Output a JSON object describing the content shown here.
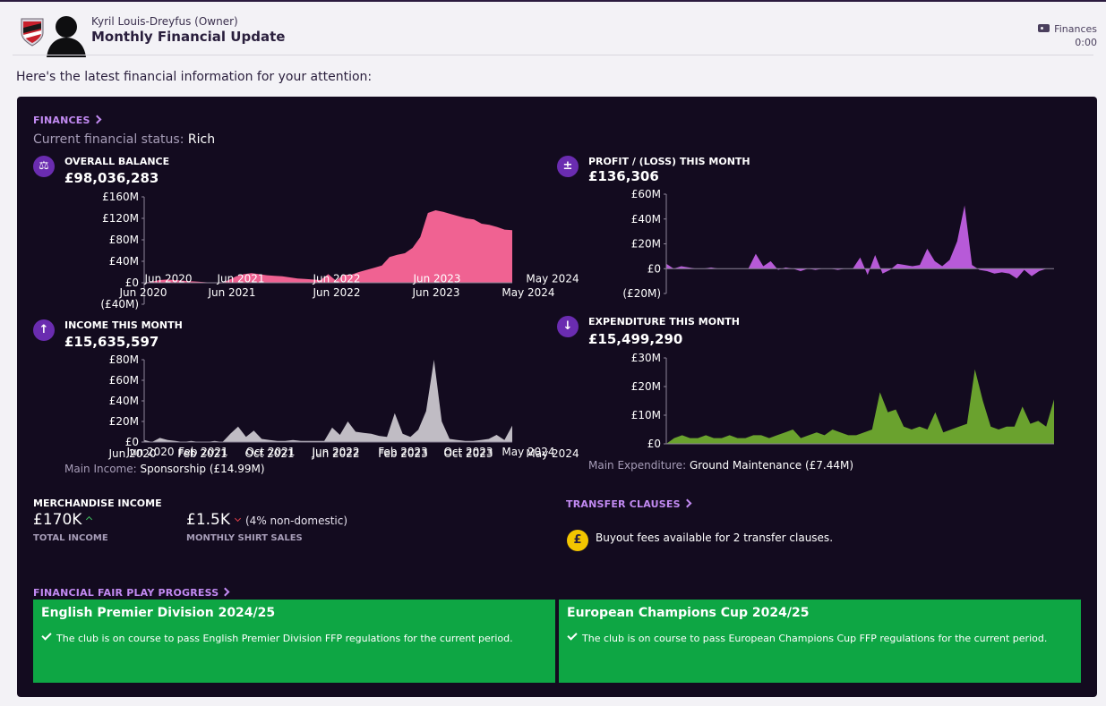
{
  "header": {
    "sender": "Kyril Louis-Dreyfus  (Owner)",
    "subject": "Monthly Financial Update",
    "tag_label": "Finances",
    "tag_time": "0:00"
  },
  "intro": "Here's the latest financial information for your attention:",
  "finances": {
    "link_label": "FINANCES",
    "status_label": "Current financial status:",
    "status_value": "Rich"
  },
  "charts": {
    "overall_balance": {
      "title": "OVERALL BALANCE",
      "value": "£98,036,283",
      "icon": "scale-icon",
      "color": "#f06292",
      "y_ticks": [
        "£160M",
        "£120M",
        "£80M",
        "£40M",
        "£0",
        "(£40M)"
      ],
      "x_ticks": [
        "Jun 2020",
        "Jun 2021",
        "Jun 2022",
        "Jun 2023",
        "May 2024"
      ]
    },
    "profit_loss": {
      "title": "PROFIT / (LOSS) THIS MONTH",
      "value": "£136,306",
      "icon": "plus-minus-icon",
      "color": "#b75ad8",
      "y_ticks": [
        "£60M",
        "£40M",
        "£20M",
        "£0",
        "(£20M)"
      ],
      "x_ticks": [
        "Jun 2020",
        "Jun 2021",
        "Jun 2022",
        "Jun 2023",
        "May 2024"
      ]
    },
    "income": {
      "title": "INCOME THIS MONTH",
      "value": "£15,635,597",
      "icon": "arrow-up-icon",
      "color": "#c0bcc4",
      "y_ticks": [
        "£80M",
        "£60M",
        "£40M",
        "£20M",
        "£0"
      ],
      "x_ticks": [
        "Jun 2020",
        "Feb 2021",
        "Oct 2021",
        "Jun 2022",
        "Feb 2023",
        "Oct 2023",
        "May 2024"
      ],
      "main_label": "Main Income:",
      "main_value": "Sponsorship (£14.99M)"
    },
    "expenditure": {
      "title": "EXPENDITURE THIS MONTH",
      "value": "£15,499,290",
      "icon": "arrow-down-icon",
      "color": "#6aa22e",
      "y_ticks": [
        "£30M",
        "£20M",
        "£10M",
        "£0"
      ],
      "x_ticks": [
        "Jun 2020",
        "Feb 2021",
        "Oct 2021",
        "Jun 2022",
        "Feb 2023",
        "Oct 2023",
        "May 2024"
      ],
      "main_label": "Main Expenditure:",
      "main_value": "Ground Maintenance (£7.44M)"
    }
  },
  "chart_data": [
    {
      "type": "area",
      "title": "OVERALL BALANCE",
      "ylim": [
        -40,
        160
      ],
      "x_labels": [
        "Jun 2020",
        "Jun 2021",
        "Jun 2022",
        "Jun 2023",
        "May 2024"
      ],
      "series": [
        {
          "values": [
            0,
            2,
            5,
            6,
            5,
            4,
            3,
            2,
            1,
            0,
            -1,
            5,
            12,
            16,
            18,
            16,
            14,
            13,
            12,
            10,
            8,
            7,
            6,
            5,
            16,
            4,
            15,
            15,
            20,
            24,
            28,
            32,
            48,
            52,
            55,
            65,
            85,
            130,
            135,
            132,
            128,
            124,
            120,
            118,
            110,
            108,
            104,
            99,
            98
          ]
        }
      ]
    },
    {
      "type": "area",
      "title": "PROFIT / (LOSS) THIS MONTH",
      "ylim": [
        -20,
        60
      ],
      "x_labels": [
        "Jun 2020",
        "Jun 2021",
        "Jun 2022",
        "Jun 2023",
        "May 2024"
      ],
      "series": [
        {
          "values": [
            4,
            0,
            2,
            1,
            0,
            0,
            1,
            0,
            0,
            0,
            0,
            0,
            12,
            2,
            6,
            -1,
            1,
            0,
            -2,
            0,
            -1,
            0,
            0,
            -1,
            0,
            0,
            9,
            -5,
            11,
            -4,
            -1,
            4,
            3,
            2,
            3,
            16,
            6,
            2,
            7,
            22,
            51,
            3,
            -1,
            -2,
            -4,
            -3,
            -4,
            -8,
            -1,
            -6,
            -2,
            0,
            0.1
          ]
        }
      ]
    },
    {
      "type": "area",
      "title": "INCOME THIS MONTH",
      "ylim": [
        0,
        80
      ],
      "x_labels": [
        "Jun 2020",
        "Feb 2021",
        "Oct 2021",
        "Jun 2022",
        "Feb 2023",
        "Oct 2023",
        "May 2024"
      ],
      "series": [
        {
          "values": [
            2,
            0,
            4,
            2,
            1,
            0,
            1,
            0,
            0,
            1,
            0,
            8,
            15,
            5,
            11,
            3,
            2,
            1,
            1,
            2,
            1,
            1,
            1,
            1,
            14,
            7,
            20,
            10,
            9,
            8,
            6,
            5,
            28,
            8,
            5,
            12,
            30,
            80,
            20,
            3,
            2,
            1,
            1,
            2,
            3,
            7,
            2,
            16
          ]
        }
      ]
    },
    {
      "type": "area",
      "title": "EXPENDITURE THIS MONTH",
      "ylim": [
        0,
        30
      ],
      "x_labels": [
        "Jun 2020",
        "Feb 2021",
        "Oct 2021",
        "Jun 2022",
        "Feb 2023",
        "Oct 2023",
        "May 2024"
      ],
      "series": [
        {
          "values": [
            0,
            2,
            3,
            2,
            2,
            3,
            2,
            2,
            3,
            2,
            2,
            3,
            3,
            2,
            3,
            4,
            5,
            2,
            3,
            4,
            3,
            5,
            4,
            3,
            3,
            4,
            5,
            18,
            11,
            12,
            6,
            5,
            6,
            5,
            11,
            4,
            5,
            6,
            7,
            26,
            15,
            6,
            5,
            6,
            6,
            13,
            7,
            8,
            6,
            15.5
          ]
        }
      ]
    }
  ],
  "merchandise": {
    "title": "MERCHANDISE INCOME",
    "total_value": "£170K",
    "total_label": "TOTAL INCOME",
    "monthly_value": "£1.5K",
    "monthly_note": "(4% non-domestic)",
    "monthly_label": "MONTHLY SHIRT SALES"
  },
  "transfer": {
    "link_label": "TRANSFER CLAUSES",
    "text": "Buyout fees available for 2 transfer clauses.",
    "coin_symbol": "£"
  },
  "ffp": {
    "link_label": "FINANCIAL FAIR PLAY PROGRESS",
    "cards": [
      {
        "title": "English Premier Division 2024/25",
        "message": "The club is on course to pass English Premier Division FFP regulations for the current period."
      },
      {
        "title": "European Champions Cup 2024/25",
        "message": "The club is on course to pass European Champions Cup FFP regulations for the current period."
      }
    ]
  }
}
